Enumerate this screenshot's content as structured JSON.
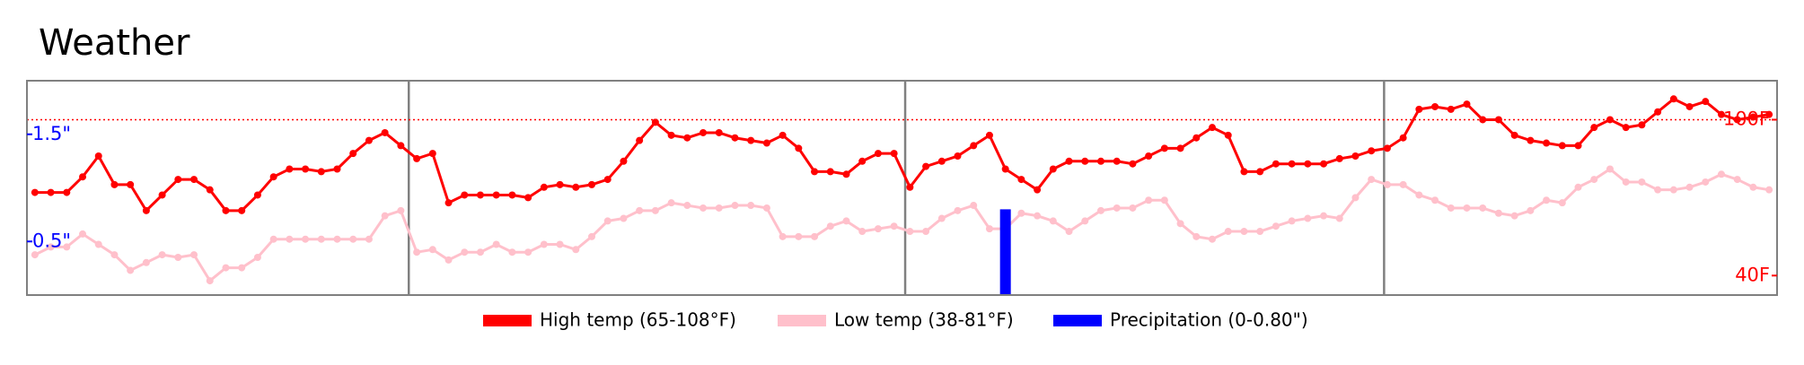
{
  "chart_data": {
    "type": "weather",
    "title": "Weather",
    "x": [
      0,
      1,
      2,
      3,
      4,
      5,
      6,
      7,
      8,
      9,
      10,
      11,
      12,
      13,
      14,
      15,
      16,
      17,
      18,
      19,
      20,
      21,
      22,
      23,
      24,
      25,
      26,
      27,
      28,
      29,
      30,
      31,
      32,
      33,
      34,
      35,
      36,
      37,
      38,
      39,
      40,
      41,
      42,
      43,
      44,
      45,
      46,
      47,
      48,
      49,
      50,
      51,
      52,
      53,
      54,
      55,
      56,
      57,
      58,
      59,
      60,
      61,
      62,
      63,
      64,
      65,
      66,
      67,
      68,
      69,
      70,
      71,
      72,
      73,
      74,
      75,
      76,
      77,
      78,
      79,
      80,
      81,
      82,
      83,
      84,
      85,
      86,
      87,
      88,
      89,
      90,
      91,
      92,
      93,
      94,
      95,
      96,
      97,
      98,
      99,
      100,
      101,
      102,
      103,
      104,
      105,
      106,
      107,
      108,
      109
    ],
    "xlim": [
      -0.5,
      109.5
    ],
    "separators": [
      23.5,
      54.7,
      84.8
    ],
    "ylim": [
      0,
      2
    ],
    "yticks": [
      {
        "value": 0.5,
        "label": "0.5\""
      },
      {
        "value": 1.5,
        "label": "1.5\""
      }
    ],
    "y2lim": [
      32.5,
      115
    ],
    "y2ticks": [
      {
        "value": 40,
        "label": "40F"
      },
      {
        "value": 100,
        "label": "100F"
      }
    ],
    "reference_line": 100,
    "series": [
      {
        "name": "High temp (65-108°F)",
        "color": "#ff0000",
        "axis": "y2",
        "kind": "line",
        "values": [
          72,
          72,
          72,
          78,
          86,
          75,
          75,
          65,
          71,
          77,
          77,
          73,
          65,
          65,
          71,
          78,
          81,
          81,
          80,
          81,
          87,
          92,
          95,
          90,
          85,
          87,
          68,
          71,
          71,
          71,
          71,
          70,
          74,
          75,
          74,
          75,
          77,
          84,
          92,
          99,
          94,
          93,
          95,
          95,
          93,
          92,
          91,
          94,
          89,
          80,
          80,
          79,
          84,
          87,
          87,
          74,
          82,
          84,
          86,
          90,
          94,
          81,
          77,
          73,
          81,
          84,
          84,
          84,
          84,
          83,
          86,
          89,
          89,
          93,
          97,
          94,
          80,
          80,
          83,
          83,
          83,
          83,
          85,
          86,
          88,
          89,
          93,
          104,
          105,
          104,
          106,
          100,
          100,
          94,
          92,
          91,
          90,
          90,
          97,
          100,
          97,
          98,
          103,
          108,
          105,
          107,
          102,
          100,
          101,
          102
        ]
      },
      {
        "name": "Low temp (38-81°F)",
        "color": "#ffc0cb",
        "axis": "y2",
        "kind": "line",
        "values": [
          48,
          51,
          51,
          56,
          52,
          48,
          42,
          45,
          48,
          47,
          48,
          38,
          43,
          43,
          47,
          54,
          54,
          54,
          54,
          54,
          54,
          54,
          63,
          65,
          49,
          50,
          46,
          49,
          49,
          52,
          49,
          49,
          52,
          52,
          50,
          55,
          61,
          62,
          65,
          65,
          68,
          67,
          66,
          66,
          67,
          67,
          66,
          55,
          55,
          55,
          59,
          61,
          57,
          58,
          59,
          57,
          57,
          62,
          65,
          67,
          58,
          58,
          64,
          63,
          61,
          57,
          61,
          65,
          66,
          66,
          69,
          69,
          60,
          55,
          54,
          57,
          57,
          57,
          59,
          61,
          62,
          63,
          62,
          70,
          77,
          75,
          75,
          71,
          69,
          66,
          66,
          66,
          64,
          63,
          65,
          69,
          68,
          74,
          77,
          81,
          76,
          76,
          73,
          73,
          74,
          76,
          79,
          77,
          74,
          73
        ]
      },
      {
        "name": "Precipitation (0-0.80\")",
        "color": "#0000ff",
        "axis": "y",
        "kind": "bar",
        "values": [
          0,
          0,
          0,
          0,
          0,
          0,
          0,
          0,
          0,
          0,
          0,
          0,
          0,
          0,
          0,
          0,
          0,
          0,
          0,
          0,
          0,
          0,
          0,
          0,
          0,
          0,
          0,
          0,
          0,
          0,
          0,
          0,
          0,
          0,
          0,
          0,
          0,
          0,
          0,
          0,
          0,
          0,
          0,
          0,
          0,
          0,
          0,
          0,
          0,
          0,
          0,
          0,
          0,
          0,
          0,
          0,
          0,
          0,
          0,
          0,
          0,
          0.8,
          0,
          0,
          0,
          0,
          0,
          0,
          0,
          0,
          0,
          0,
          0,
          0,
          0,
          0,
          0,
          0,
          0,
          0,
          0,
          0,
          0,
          0,
          0,
          0,
          0,
          0,
          0,
          0,
          0,
          0,
          0,
          0,
          0,
          0,
          0,
          0,
          0,
          0,
          0,
          0,
          0,
          0,
          0,
          0,
          0,
          0,
          0,
          0
        ]
      }
    ]
  }
}
